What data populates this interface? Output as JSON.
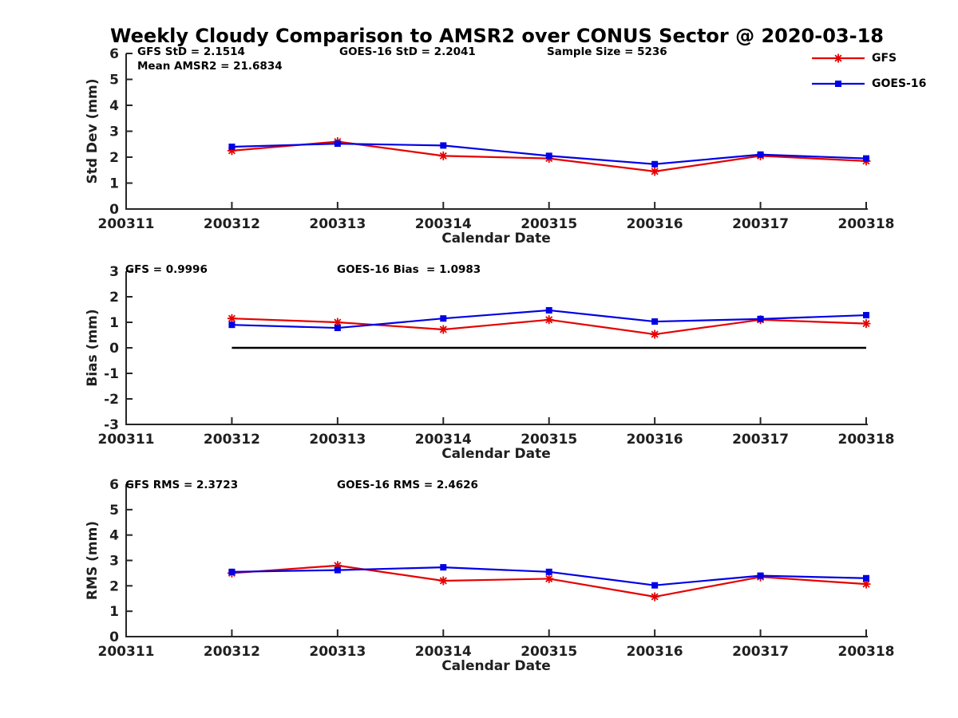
{
  "title": "Weekly Cloudy Comparison to AMSR2 over CONUS Sector @ 2020-03-18",
  "colors": {
    "gfs_red": "#e60000",
    "goes16_blue": "#0000e6",
    "axis": "#262626",
    "zero_line": "#000000"
  },
  "legend": {
    "items": [
      {
        "label": "GFS",
        "color": "#e60000",
        "marker": "asterisk"
      },
      {
        "label": "GOES-16",
        "color": "#0000e6",
        "marker": "square"
      }
    ]
  },
  "chart_data": [
    {
      "id": "std-dev",
      "type": "line",
      "xlabel": "Calendar Date",
      "ylabel": "Std Dev (mm)",
      "ylim": [
        0,
        6
      ],
      "yticks": [
        0,
        1,
        2,
        3,
        4,
        5,
        6
      ],
      "categories": [
        "200311",
        "200312",
        "200313",
        "200314",
        "200315",
        "200316",
        "200317",
        "200318"
      ],
      "series": [
        {
          "name": "GFS",
          "color": "#e60000",
          "marker": "asterisk",
          "values": [
            null,
            2.25,
            2.6,
            2.05,
            1.95,
            1.45,
            2.05,
            1.85
          ]
        },
        {
          "name": "GOES-16",
          "color": "#0000e6",
          "marker": "square",
          "values": [
            null,
            2.4,
            2.52,
            2.45,
            2.05,
            1.73,
            2.1,
            1.95
          ]
        }
      ],
      "annotations": [
        "GFS StD = 2.1514",
        "Mean AMSR2 = 21.6834",
        "GOES-16 StD = 2.2041",
        "Sample Size = 5236"
      ],
      "zero_line": false
    },
    {
      "id": "bias",
      "type": "line",
      "xlabel": "Calendar Date",
      "ylabel": "Bias (mm)",
      "ylim": [
        -3,
        3
      ],
      "yticks": [
        -3,
        -2,
        -1,
        0,
        1,
        2,
        3
      ],
      "categories": [
        "200311",
        "200312",
        "200313",
        "200314",
        "200315",
        "200316",
        "200317",
        "200318"
      ],
      "series": [
        {
          "name": "GFS",
          "color": "#e60000",
          "marker": "asterisk",
          "values": [
            null,
            1.15,
            1.0,
            0.72,
            1.1,
            0.53,
            1.1,
            0.95
          ]
        },
        {
          "name": "GOES-16",
          "color": "#0000e6",
          "marker": "square",
          "values": [
            null,
            0.9,
            0.78,
            1.15,
            1.47,
            1.03,
            1.13,
            1.28
          ]
        }
      ],
      "annotations": [
        "GFS = 0.9996",
        "GOES-16 Bias  = 1.0983"
      ],
      "zero_line": true,
      "zero_line_from": "200312"
    },
    {
      "id": "rms",
      "type": "line",
      "xlabel": "Calendar Date",
      "ylabel": "RMS (mm)",
      "ylim": [
        0,
        6
      ],
      "yticks": [
        0,
        1,
        2,
        3,
        4,
        5,
        6
      ],
      "categories": [
        "200311",
        "200312",
        "200313",
        "200314",
        "200315",
        "200316",
        "200317",
        "200318"
      ],
      "series": [
        {
          "name": "GFS",
          "color": "#e60000",
          "marker": "asterisk",
          "values": [
            null,
            2.5,
            2.8,
            2.2,
            2.28,
            1.57,
            2.35,
            2.07
          ]
        },
        {
          "name": "GOES-16",
          "color": "#0000e6",
          "marker": "square",
          "values": [
            null,
            2.55,
            2.62,
            2.73,
            2.55,
            2.02,
            2.4,
            2.3
          ]
        }
      ],
      "annotations": [
        "GFS RMS = 2.3723",
        "GOES-16 RMS = 2.4626"
      ],
      "zero_line": false
    }
  ]
}
